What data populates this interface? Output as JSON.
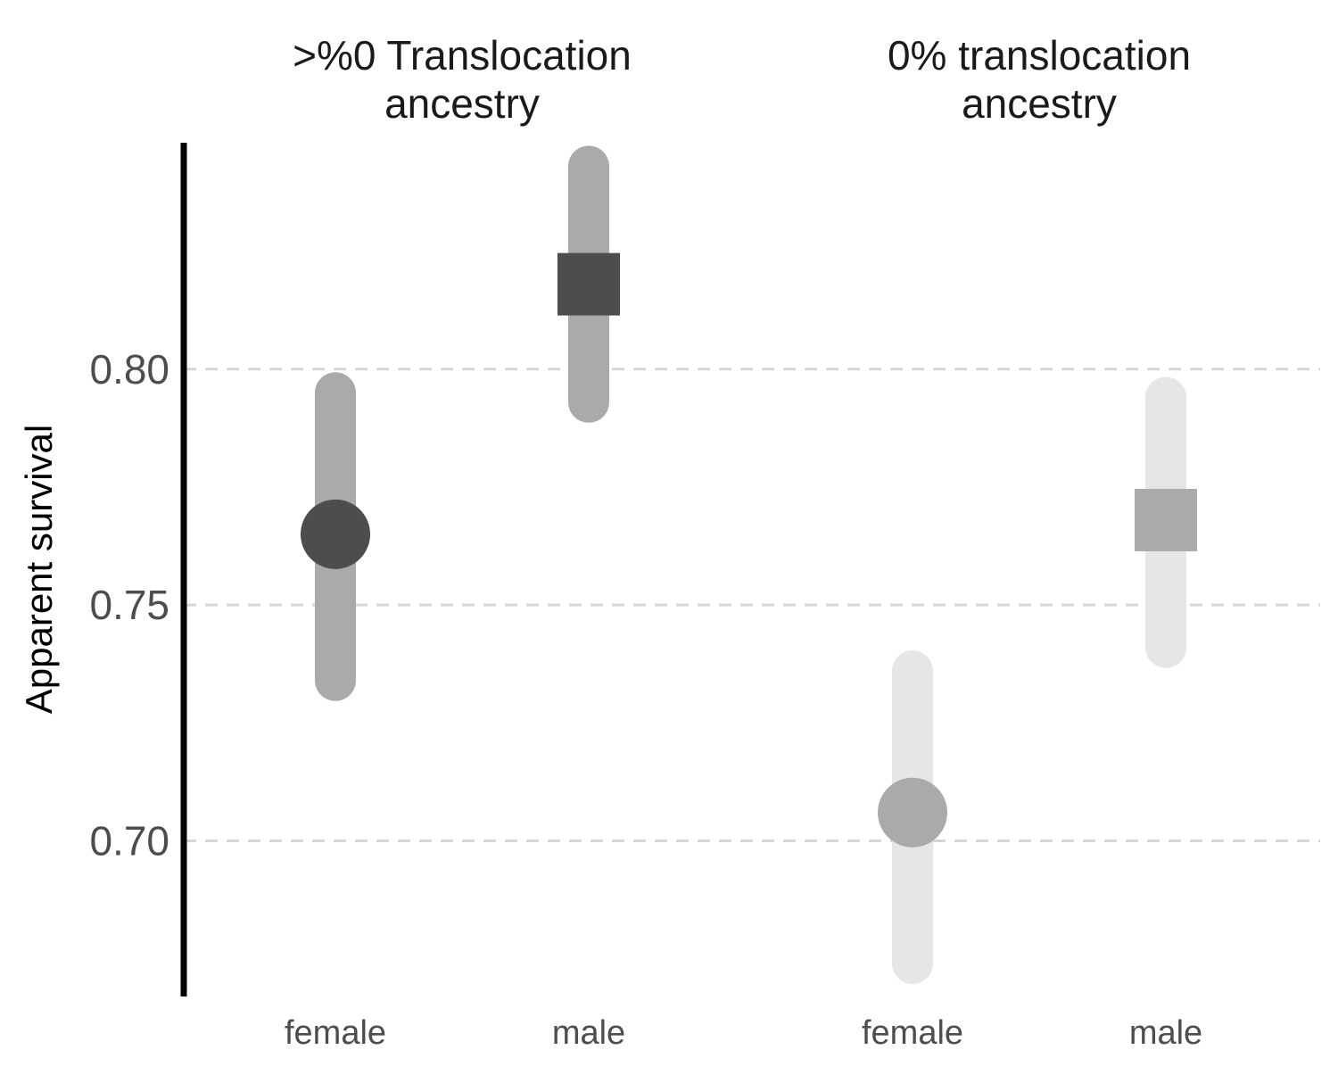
{
  "chart_data": {
    "type": "pointrange",
    "title": "",
    "ylabel": "Apparent survival",
    "xlabel": "",
    "ylim": [
      0.667,
      0.848
    ],
    "yticks": [
      0.7,
      0.75,
      0.8
    ],
    "ytick_labels": [
      "0.70",
      "0.75",
      "0.80"
    ],
    "grid": "horizontal dashed",
    "legend": "none",
    "panels": [
      {
        "title_lines": [
          ">%0 Translocation",
          "ancestry"
        ],
        "points": [
          {
            "category": "female",
            "estimate": 0.765,
            "lower": 0.734,
            "upper": 0.795,
            "shape": "circle",
            "point_color": "#4d4d4d",
            "interval_color": "#aaaaaa"
          },
          {
            "category": "male",
            "estimate": 0.818,
            "lower": 0.793,
            "upper": 0.843,
            "shape": "square",
            "point_color": "#4d4d4d",
            "interval_color": "#aaaaaa"
          }
        ]
      },
      {
        "title_lines": [
          "0% translocation",
          "ancestry"
        ],
        "points": [
          {
            "category": "female",
            "estimate": 0.706,
            "lower": 0.674,
            "upper": 0.736,
            "shape": "circle",
            "point_color": "#aaaaaa",
            "interval_color": "#e6e6e6"
          },
          {
            "category": "male",
            "estimate": 0.768,
            "lower": 0.741,
            "upper": 0.794,
            "shape": "square",
            "point_color": "#aaaaaa",
            "interval_color": "#e6e6e6"
          }
        ]
      }
    ]
  }
}
